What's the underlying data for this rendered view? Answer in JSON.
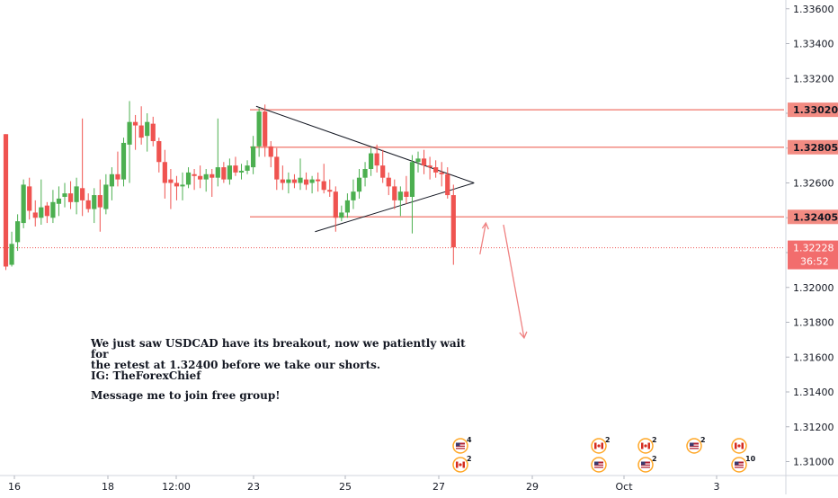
{
  "chart_data": {
    "type": "candlestick",
    "symbol": "USDCAD",
    "x_tick_labels": [
      "16",
      "18",
      "12:00",
      "23",
      "25",
      "27",
      "29",
      "Oct",
      "3"
    ],
    "y_tick_labels": [
      "1.33600",
      "1.33400",
      "1.33200",
      "1.33000",
      "1.32800",
      "1.32600",
      "1.32400",
      "1.32200",
      "1.32000",
      "1.31800",
      "1.31600",
      "1.31400",
      "1.31200",
      "1.31000"
    ],
    "ylim": [
      1.3088,
      1.3372
    ],
    "y_scale_ticks": [
      1.336,
      1.334,
      1.332,
      1.33,
      1.328,
      1.326,
      1.324,
      1.322,
      1.32,
      1.318,
      1.316,
      1.314,
      1.312,
      1.31
    ],
    "candles": [
      {
        "o": 1.3288,
        "h": 1.3288,
        "l": 1.321,
        "c": 1.3212
      },
      {
        "o": 1.3213,
        "h": 1.3232,
        "l": 1.3212,
        "c": 1.3225
      },
      {
        "o": 1.3226,
        "h": 1.3242,
        "l": 1.3221,
        "c": 1.3238
      },
      {
        "o": 1.3237,
        "h": 1.3262,
        "l": 1.3234,
        "c": 1.3259
      },
      {
        "o": 1.3258,
        "h": 1.3263,
        "l": 1.3239,
        "c": 1.3244
      },
      {
        "o": 1.3243,
        "h": 1.325,
        "l": 1.3235,
        "c": 1.324
      },
      {
        "o": 1.324,
        "h": 1.3262,
        "l": 1.3236,
        "c": 1.3246
      },
      {
        "o": 1.3247,
        "h": 1.3249,
        "l": 1.3237,
        "c": 1.3241
      },
      {
        "o": 1.324,
        "h": 1.3256,
        "l": 1.3237,
        "c": 1.3249
      },
      {
        "o": 1.3248,
        "h": 1.3258,
        "l": 1.3241,
        "c": 1.3251
      },
      {
        "o": 1.3252,
        "h": 1.326,
        "l": 1.3246,
        "c": 1.3254
      },
      {
        "o": 1.3254,
        "h": 1.3261,
        "l": 1.3245,
        "c": 1.3249
      },
      {
        "o": 1.3249,
        "h": 1.3263,
        "l": 1.3242,
        "c": 1.3258
      },
      {
        "o": 1.3257,
        "h": 1.3297,
        "l": 1.3241,
        "c": 1.325
      },
      {
        "o": 1.325,
        "h": 1.3254,
        "l": 1.3243,
        "c": 1.3245
      },
      {
        "o": 1.3245,
        "h": 1.3257,
        "l": 1.3237,
        "c": 1.3253
      },
      {
        "o": 1.3253,
        "h": 1.3262,
        "l": 1.3232,
        "c": 1.3246
      },
      {
        "o": 1.3245,
        "h": 1.3265,
        "l": 1.3242,
        "c": 1.3259
      },
      {
        "o": 1.3258,
        "h": 1.3269,
        "l": 1.325,
        "c": 1.3265
      },
      {
        "o": 1.3265,
        "h": 1.3278,
        "l": 1.3258,
        "c": 1.3262
      },
      {
        "o": 1.3262,
        "h": 1.3286,
        "l": 1.3258,
        "c": 1.3283
      },
      {
        "o": 1.3282,
        "h": 1.3307,
        "l": 1.326,
        "c": 1.3295
      },
      {
        "o": 1.3295,
        "h": 1.3299,
        "l": 1.3279,
        "c": 1.3293
      },
      {
        "o": 1.3293,
        "h": 1.3304,
        "l": 1.3282,
        "c": 1.3286
      },
      {
        "o": 1.3287,
        "h": 1.33,
        "l": 1.3278,
        "c": 1.3295
      },
      {
        "o": 1.3294,
        "h": 1.3298,
        "l": 1.3281,
        "c": 1.3284
      },
      {
        "o": 1.3284,
        "h": 1.3286,
        "l": 1.3266,
        "c": 1.3272
      },
      {
        "o": 1.3272,
        "h": 1.3279,
        "l": 1.3251,
        "c": 1.326
      },
      {
        "o": 1.3262,
        "h": 1.3268,
        "l": 1.3245,
        "c": 1.326
      },
      {
        "o": 1.326,
        "h": 1.3264,
        "l": 1.325,
        "c": 1.3258
      },
      {
        "o": 1.3258,
        "h": 1.3266,
        "l": 1.325,
        "c": 1.3259
      },
      {
        "o": 1.3259,
        "h": 1.3269,
        "l": 1.3257,
        "c": 1.3266
      },
      {
        "o": 1.3265,
        "h": 1.3268,
        "l": 1.3256,
        "c": 1.3264
      },
      {
        "o": 1.3264,
        "h": 1.327,
        "l": 1.3257,
        "c": 1.3262
      },
      {
        "o": 1.3262,
        "h": 1.3268,
        "l": 1.3255,
        "c": 1.3265
      },
      {
        "o": 1.3265,
        "h": 1.3268,
        "l": 1.3252,
        "c": 1.3263
      },
      {
        "o": 1.3263,
        "h": 1.3297,
        "l": 1.3258,
        "c": 1.3269
      },
      {
        "o": 1.3269,
        "h": 1.3272,
        "l": 1.326,
        "c": 1.3262
      },
      {
        "o": 1.3262,
        "h": 1.3274,
        "l": 1.3259,
        "c": 1.327
      },
      {
        "o": 1.327,
        "h": 1.3275,
        "l": 1.3264,
        "c": 1.3266
      },
      {
        "o": 1.3266,
        "h": 1.3271,
        "l": 1.3262,
        "c": 1.3267
      },
      {
        "o": 1.3267,
        "h": 1.3273,
        "l": 1.3265,
        "c": 1.327
      },
      {
        "o": 1.3269,
        "h": 1.3287,
        "l": 1.3265,
        "c": 1.3281
      },
      {
        "o": 1.3281,
        "h": 1.3303,
        "l": 1.3275,
        "c": 1.3301
      },
      {
        "o": 1.3301,
        "h": 1.3305,
        "l": 1.3275,
        "c": 1.3281
      },
      {
        "o": 1.3281,
        "h": 1.3284,
        "l": 1.3269,
        "c": 1.3275
      },
      {
        "o": 1.3275,
        "h": 1.328,
        "l": 1.3256,
        "c": 1.3262
      },
      {
        "o": 1.3262,
        "h": 1.327,
        "l": 1.3256,
        "c": 1.326
      },
      {
        "o": 1.326,
        "h": 1.3266,
        "l": 1.3254,
        "c": 1.3262
      },
      {
        "o": 1.3262,
        "h": 1.3265,
        "l": 1.3257,
        "c": 1.326
      },
      {
        "o": 1.326,
        "h": 1.3274,
        "l": 1.3256,
        "c": 1.3263
      },
      {
        "o": 1.3262,
        "h": 1.3266,
        "l": 1.3256,
        "c": 1.3259
      },
      {
        "o": 1.326,
        "h": 1.3264,
        "l": 1.3254,
        "c": 1.3262
      },
      {
        "o": 1.3262,
        "h": 1.3266,
        "l": 1.3255,
        "c": 1.3261
      },
      {
        "o": 1.3261,
        "h": 1.3271,
        "l": 1.3254,
        "c": 1.3256
      },
      {
        "o": 1.3256,
        "h": 1.3262,
        "l": 1.3252,
        "c": 1.3255
      },
      {
        "o": 1.3255,
        "h": 1.3258,
        "l": 1.3232,
        "c": 1.324
      },
      {
        "o": 1.324,
        "h": 1.3247,
        "l": 1.3238,
        "c": 1.3243
      },
      {
        "o": 1.3243,
        "h": 1.3254,
        "l": 1.324,
        "c": 1.325
      },
      {
        "o": 1.325,
        "h": 1.3262,
        "l": 1.3245,
        "c": 1.3255
      },
      {
        "o": 1.3255,
        "h": 1.3268,
        "l": 1.3251,
        "c": 1.3263
      },
      {
        "o": 1.3263,
        "h": 1.3272,
        "l": 1.3258,
        "c": 1.3268
      },
      {
        "o": 1.3268,
        "h": 1.328,
        "l": 1.3264,
        "c": 1.3277
      },
      {
        "o": 1.3277,
        "h": 1.3282,
        "l": 1.3266,
        "c": 1.327
      },
      {
        "o": 1.327,
        "h": 1.3279,
        "l": 1.326,
        "c": 1.3263
      },
      {
        "o": 1.3263,
        "h": 1.3266,
        "l": 1.3253,
        "c": 1.3258
      },
      {
        "o": 1.3258,
        "h": 1.3262,
        "l": 1.3245,
        "c": 1.325
      },
      {
        "o": 1.325,
        "h": 1.3258,
        "l": 1.3241,
        "c": 1.3255
      },
      {
        "o": 1.3255,
        "h": 1.3264,
        "l": 1.3248,
        "c": 1.3252
      },
      {
        "o": 1.3252,
        "h": 1.3276,
        "l": 1.3231,
        "c": 1.3272
      },
      {
        "o": 1.3272,
        "h": 1.3278,
        "l": 1.3266,
        "c": 1.3274
      },
      {
        "o": 1.3274,
        "h": 1.3279,
        "l": 1.3265,
        "c": 1.327
      },
      {
        "o": 1.327,
        "h": 1.3275,
        "l": 1.3262,
        "c": 1.3269
      },
      {
        "o": 1.3269,
        "h": 1.3273,
        "l": 1.3263,
        "c": 1.3266
      },
      {
        "o": 1.3266,
        "h": 1.3272,
        "l": 1.3258,
        "c": 1.3265
      },
      {
        "o": 1.3265,
        "h": 1.3269,
        "l": 1.3251,
        "c": 1.3253
      },
      {
        "o": 1.3253,
        "h": 1.3259,
        "l": 1.3213,
        "c": 1.3223
      }
    ],
    "horizontal_levels": [
      {
        "value": 1.3302,
        "label": "1.33020"
      },
      {
        "value": 1.32805,
        "label": "1.32805"
      },
      {
        "value": 1.32405,
        "label": "1.32405"
      }
    ],
    "current_price": {
      "value": 1.32228,
      "label": "1.32228",
      "countdown": "36:52"
    },
    "triangle": {
      "upper": [
        {
          "candle": 42.5,
          "price": 1.3304
        },
        {
          "candle": 79.5,
          "price": 1.326
        }
      ],
      "lower": [
        {
          "candle": 52.5,
          "price": 1.3232
        },
        {
          "candle": 79.5,
          "price": 1.326
        }
      ]
    },
    "projection": [
      {
        "candle": 80.5,
        "price": 1.3219
      },
      {
        "candle": 81.5,
        "price": 1.3237
      },
      {
        "candle": 84.5,
        "price": 1.3236
      },
      {
        "candle": 88.0,
        "price": 1.3171
      }
    ],
    "colors": {
      "up": "#26a69a",
      "up_body": "#4caf50",
      "down": "#ef5350",
      "level": "#f28b82",
      "projection": "#ef8080",
      "price_tag": "#f26d6d"
    },
    "annotation": {
      "line1": "We just saw USDCAD have its breakout, now we patiently wait for\nthe retest at 1.32400 before we take our shorts.",
      "line2": "IG: TheForexChief",
      "line3": "Message me to join free group!"
    },
    "events": [
      {
        "flag": "us-flag-icon",
        "count": "4",
        "col": 0
      },
      {
        "flag": "ca-flag-icon",
        "count": "2",
        "col": 0
      },
      {
        "flag": "ca-flag-icon",
        "count": "2",
        "col": 1
      },
      {
        "flag": "us-flag-icon",
        "count": "",
        "col": 1
      },
      {
        "flag": "ca-flag-icon",
        "count": "2",
        "col": 2
      },
      {
        "flag": "us-flag-icon",
        "count": "2",
        "col": 2
      },
      {
        "flag": "us-flag-icon",
        "count": "2",
        "col": 3
      },
      {
        "flag": "ca-flag-icon",
        "count": "",
        "col": 4
      },
      {
        "flag": "us-flag-icon",
        "count": "10",
        "col": 4
      }
    ]
  }
}
